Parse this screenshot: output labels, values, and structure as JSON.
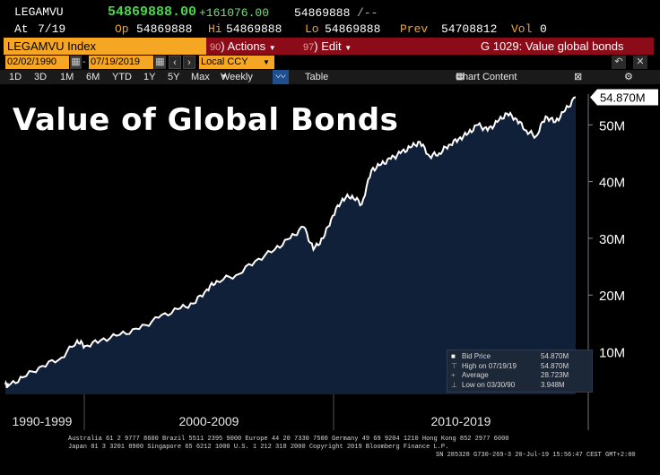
{
  "ticker": {
    "symbol": "LEGAMVU",
    "last": "54869888.00",
    "change": "+161076.00",
    "bid": "54869888",
    "ask": "/--",
    "at_label": "At",
    "at_date": "7/19",
    "open_label": "Op",
    "open": "54869888",
    "high_label": "Hi",
    "high": "54869888",
    "low_label": "Lo",
    "low": "54869888",
    "prev_label": "Prev",
    "prev": "54708812",
    "vol_label": "Vol",
    "vol": "0"
  },
  "header": {
    "security": "LEGAMVU Index",
    "actions_num": "90",
    "actions_label": "Actions",
    "edit_num": "97",
    "edit_label": "Edit",
    "chart_id": "G 1029: Value global bonds"
  },
  "controls": {
    "start_date": "02/02/1990",
    "end_date": "07/19/2019",
    "currency": "Local CCY"
  },
  "periods": [
    "1D",
    "3D",
    "1M",
    "6M",
    "YTD",
    "1Y",
    "5Y",
    "Max"
  ],
  "toolbar": {
    "frequency": "Weekly",
    "table_label": "Table",
    "chart_content_label": "Chart Content"
  },
  "chart_data": {
    "type": "area",
    "title": "Value of Global Bonds",
    "last_value_label": "54.870M",
    "y_ticks": [
      "10M",
      "20M",
      "30M",
      "40M",
      "50M"
    ],
    "y_tick_values": [
      10,
      20,
      30,
      40,
      50
    ],
    "x_tick_labels": [
      "1990-1999",
      "2000-2009",
      "2010-2019"
    ],
    "ylim": [
      2.5,
      57
    ],
    "x_range": [
      1990.09,
      2019.55
    ],
    "series": [
      {
        "name": "Bid Price",
        "x": [
          1990.09,
          1990.24,
          1991.0,
          1992.0,
          1993.0,
          1993.8,
          1994.2,
          1995.0,
          1996.0,
          1997.0,
          1998.0,
          1999.0,
          1999.8,
          2000.5,
          2001.0,
          2002.0,
          2003.0,
          2004.0,
          2004.8,
          2005.5,
          2006.0,
          2006.5,
          2007.0,
          2007.5,
          2008.0,
          2008.5,
          2009.0,
          2009.5,
          2010.0,
          2010.5,
          2011.0,
          2011.5,
          2012.0,
          2012.5,
          2013.0,
          2013.5,
          2014.0,
          2014.5,
          2015.0,
          2015.5,
          2016.0,
          2016.5,
          2017.0,
          2017.5,
          2018.0,
          2018.5,
          2019.0,
          2019.55
        ],
        "values": [
          4.2,
          3.948,
          5.5,
          7.5,
          9.0,
          12.0,
          11.0,
          12.0,
          13.0,
          14.0,
          16.0,
          17.5,
          18.5,
          21.0,
          22.5,
          23.5,
          26.0,
          28.0,
          30.0,
          32.0,
          28.0,
          30.0,
          34.0,
          37.0,
          37.5,
          36.0,
          42.0,
          43.0,
          44.0,
          45.0,
          46.0,
          47.0,
          44.5,
          45.0,
          46.5,
          47.5,
          48.5,
          50.0,
          49.0,
          50.5,
          52.0,
          51.0,
          49.0,
          48.0,
          51.5,
          50.5,
          52.5,
          54.87
        ]
      }
    ],
    "legend": [
      {
        "label": "Bid Price",
        "value": "54.870M"
      },
      {
        "label": "High on 07/19/19",
        "value": "54.870M"
      },
      {
        "label": "Average",
        "value": "28.723M"
      },
      {
        "label": "Low on 03/30/90",
        "value": "3.948M"
      }
    ]
  },
  "footer": {
    "line1": "Australia 61 2 9777 8600 Brazil 5511 2395 9000 Europe 44 20 7330 7500 Germany 49 69 9204 1210 Hong Kong 852 2977 6000",
    "line2": "Japan 81 3 3201 8900       Singapore 65 6212 1000      U.S. 1 212 318 2000       Copyright 2019 Bloomberg Finance L.P.",
    "line3": "SN 285328 G730-269-3 20-Jul-19 15:56:47 CEST GMT+2:00"
  },
  "colors": {
    "orange": "#f5a623",
    "red_bar": "#8b0c18",
    "price_green": "#4cd64c",
    "area_fill": "#0f2038",
    "line": "#ffffff"
  }
}
